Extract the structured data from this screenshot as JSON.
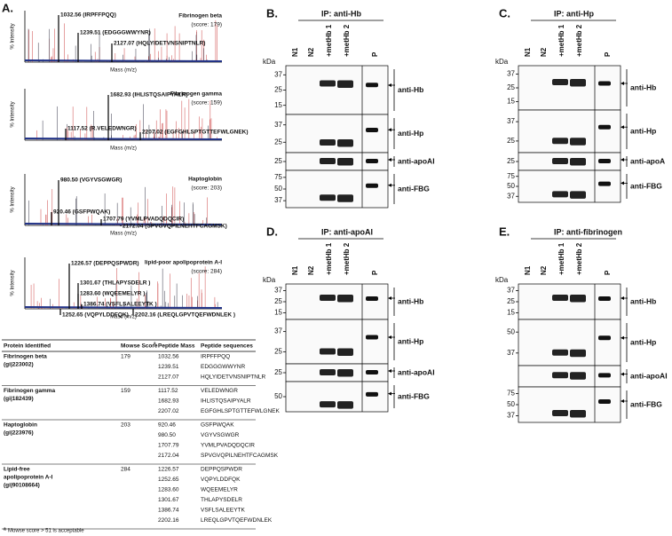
{
  "panel_a": {
    "label": "A.",
    "y_label": "% Intensity",
    "x_label": "Mass (m/z)",
    "spectra": [
      {
        "protein": "Fibrinogen beta",
        "score": "(score: 179)",
        "peaks": [
          "1032.56 (IRPFFPQQ)",
          "1239.51 (EDGGGWWYNR)",
          "2127.07 (HQLYIDETVNSNIPTNLR)"
        ]
      },
      {
        "protein": "Fibrinogen gamma",
        "score": "(score: 159)",
        "peaks": [
          "1682.93 (IHLISTQSAIPYALR)",
          "1117.52 (R.VELEDWNGR)",
          "2207.02 (EGFGHLSPTGTTEFWLGNEK)"
        ]
      },
      {
        "protein": "Haptoglobin",
        "score": "(score: 203)",
        "peaks": [
          "980.50 (VGYVSGWGR)",
          "920.46 (GSFPWQAK)",
          "1707.79 (YVMLPVADQDQCIR)",
          "2172.04 (SPVGVQPILNEHTFCAGMSK)"
        ]
      },
      {
        "protein": "lipid-poor apolipoprotein A-I",
        "score": "(score: 284)",
        "peaks": [
          "1226.57 (DEPPQSPWDR)",
          "1301.67 (THLAPYSDELR )",
          "1283.60 (WQEEMELYR )",
          "1386.74 (VSFLSALEEYTK )",
          "1252.65 (VQPYLDDFQK)",
          "2202.16 (LREQLGPVTQEFWDNLEK )"
        ]
      }
    ],
    "table": {
      "headers": [
        "Protein Identified",
        "Mowse Score",
        "Peptide Mass",
        "Peptide sequences"
      ],
      "header_sup": "a",
      "rows": [
        {
          "protein": [
            "Fibrinogen beta",
            "(gi|223002)"
          ],
          "score": "179",
          "masses": [
            "1032.56",
            "1239.51",
            "2127.07"
          ],
          "sequences": [
            "IRPFFPQQ",
            "EDGGGWWYNR",
            "HQLYIDETVNSNIPTNLR"
          ]
        },
        {
          "protein": [
            "Fibrinogen gamma",
            "(gi|182439)"
          ],
          "score": "159",
          "masses": [
            "1117.52",
            "1682.93",
            "2207.02"
          ],
          "sequences": [
            "VELEDWNGR",
            "IHLISTQSAIPYALR",
            "EGFGHLSPTGTTEFWLGNEK"
          ]
        },
        {
          "protein": [
            "Haptoglobin",
            "(gi|223976)"
          ],
          "score": "203",
          "masses": [
            "920.46",
            "980.50",
            "1707.79",
            "2172.04"
          ],
          "sequences": [
            "GSFPWQAK",
            "VGYVSGWGR",
            "YVMLPVADQDQCIR",
            "SPVGVQPILNEHTFCAGMSK"
          ]
        },
        {
          "protein": [
            "Lipid-free",
            "apolipoprotein A-I",
            "(gi|90108664)"
          ],
          "score": "284",
          "masses": [
            "1226.57",
            "1252.65",
            "1283.60",
            "1301.67",
            "1386.74",
            "2202.16"
          ],
          "sequences": [
            "DEPPQSPWDR",
            "VQPYLDDFQK",
            "WQEEMELYR",
            "THLAPYSDELR",
            "VSFLSALEEYTK",
            "LREQLGPVTQEFWDNLEK"
          ]
        }
      ],
      "footnote_sup": "a",
      "footnote": "Mowse score > 51 is acceptable"
    }
  },
  "kda": "kDa",
  "lanes": [
    "N1",
    "N2",
    "+metHb 1",
    "+metHb 2",
    "P"
  ],
  "blots": [
    {
      "label": "B.",
      "title": "IP: anti-Hb",
      "sections": [
        {
          "antibody": "anti-Hb",
          "markers": [
            "37",
            "25",
            "15"
          ]
        },
        {
          "antibody": "anti-Hp",
          "markers": [
            "37",
            "25"
          ]
        },
        {
          "antibody": "anti-apoAI",
          "markers": [
            "25"
          ]
        },
        {
          "antibody": "anti-FBG",
          "markers": [
            "75",
            "50",
            "37"
          ]
        }
      ]
    },
    {
      "label": "C.",
      "title": "IP: anti-Hp",
      "sections": [
        {
          "antibody": "anti-Hb",
          "markers": [
            "37",
            "25",
            "15"
          ]
        },
        {
          "antibody": "anti-Hp",
          "markers": [
            "37",
            "25"
          ]
        },
        {
          "antibody": "anti-apoA",
          "markers": [
            "25"
          ]
        },
        {
          "antibody": "anti-FBG",
          "markers": [
            "75",
            "50",
            "37"
          ]
        }
      ]
    },
    {
      "label": "D.",
      "title": "IP: anti-apoAI",
      "sections": [
        {
          "antibody": "anti-Hb",
          "markers": [
            "37",
            "25",
            "15"
          ]
        },
        {
          "antibody": "anti-Hp",
          "markers": [
            "37",
            "25"
          ]
        },
        {
          "antibody": "anti-apoAI",
          "markers": [
            "25"
          ]
        },
        {
          "antibody": "anti-FBG",
          "markers": [
            "50"
          ]
        }
      ]
    },
    {
      "label": "E.",
      "title": "IP: anti-fibrinogen",
      "sections": [
        {
          "antibody": "anti-Hb",
          "markers": [
            "37",
            "25",
            "15"
          ]
        },
        {
          "antibody": "anti-Hp",
          "markers": [
            "50",
            "37"
          ]
        },
        {
          "antibody": "anti-apoAI",
          "markers": []
        },
        {
          "antibody": "anti-FBG",
          "markers": [
            "75",
            "50",
            "37"
          ]
        }
      ]
    }
  ]
}
